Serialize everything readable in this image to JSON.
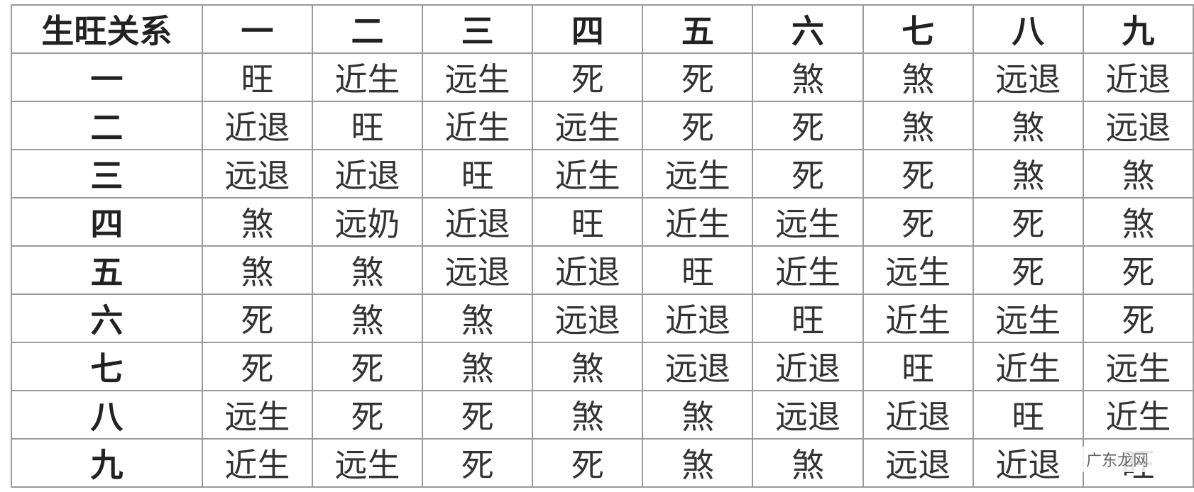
{
  "table": {
    "header": [
      "生旺关系",
      "一",
      "二",
      "三",
      "四",
      "五",
      "六",
      "七",
      "八",
      "九"
    ],
    "rows": [
      [
        "一",
        "旺",
        "近生",
        "远生",
        "死",
        "死",
        "煞",
        "煞",
        "远退",
        "近退"
      ],
      [
        "二",
        "近退",
        "旺",
        "近生",
        "远生",
        "死",
        "死",
        "煞",
        "煞",
        "远退"
      ],
      [
        "三",
        "远退",
        "近退",
        "旺",
        "近生",
        "远生",
        "死",
        "死",
        "煞",
        "煞"
      ],
      [
        "四",
        "煞",
        "远奶",
        "近退",
        "旺",
        "近生",
        "远生",
        "死",
        "死",
        "煞"
      ],
      [
        "五",
        "煞",
        "煞",
        "远退",
        "近退",
        "旺",
        "近生",
        "远生",
        "死",
        "死"
      ],
      [
        "六",
        "死",
        "煞",
        "煞",
        "远退",
        "近退",
        "旺",
        "近生",
        "远生",
        "死"
      ],
      [
        "七",
        "死",
        "死",
        "煞",
        "煞",
        "远退",
        "近退",
        "旺",
        "近生",
        "远生"
      ],
      [
        "八",
        "远生",
        "死",
        "死",
        "煞",
        "煞",
        "远退",
        "近退",
        "旺",
        "近生"
      ],
      [
        "九",
        "近生",
        "远生",
        "死",
        "死",
        "煞",
        "煞",
        "远退",
        "近退",
        "旺"
      ]
    ]
  },
  "watermark": "广东龙网"
}
